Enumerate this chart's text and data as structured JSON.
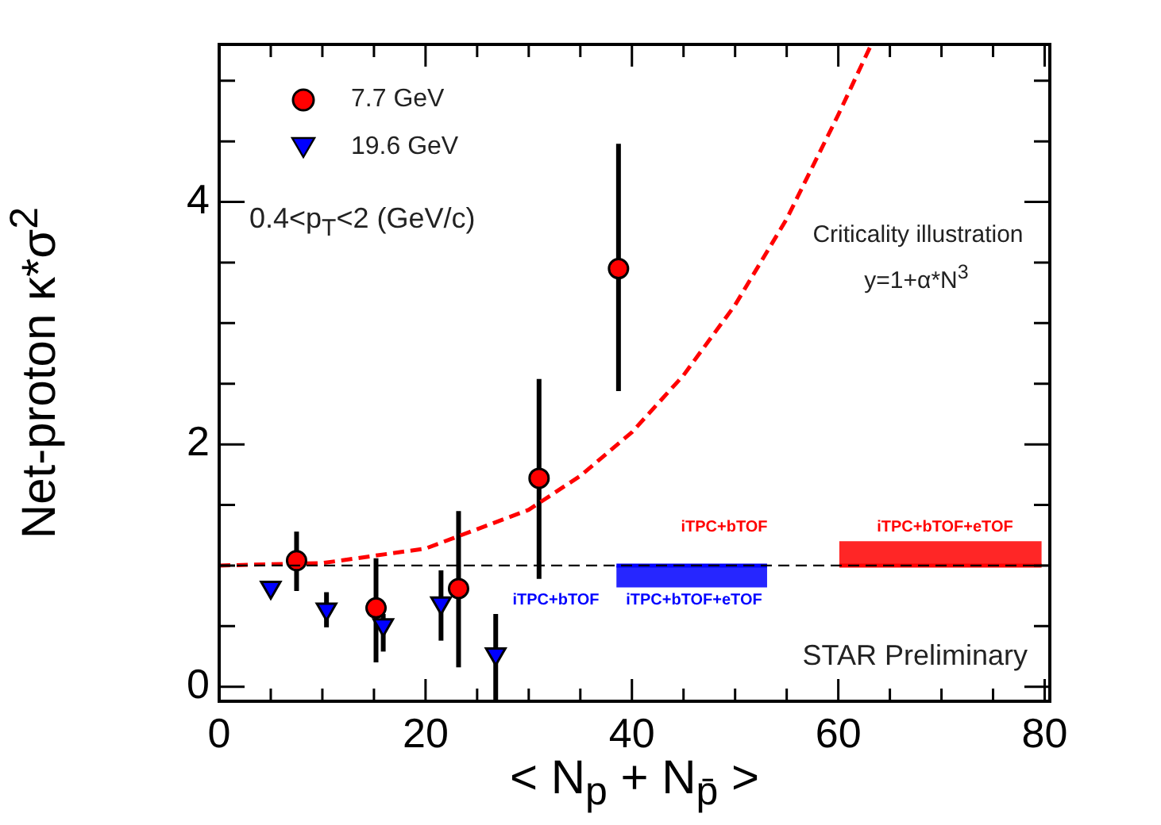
{
  "chart_data": {
    "type": "scatter",
    "xlabel": "< N$_{p}$ + N$_{p̄}$ >",
    "ylabel": "Net-proton  κ*σ$^{2}$",
    "xlim": [
      0,
      80.5
    ],
    "xticks": [
      0,
      {
        "value": 5,
        "label": null
      },
      {
        "value": 10,
        "label": null
      },
      {
        "value": 15,
        "label": null
      },
      20,
      {
        "value": 25,
        "label": null
      },
      {
        "value": 30,
        "label": null
      },
      {
        "value": 35,
        "label": null
      },
      40,
      {
        "value": 45,
        "label": null
      },
      {
        "value": 50,
        "label": null
      },
      {
        "value": 55,
        "label": null
      },
      60,
      {
        "value": 65,
        "label": null
      },
      {
        "value": 70,
        "label": null
      },
      {
        "value": 75,
        "label": null
      },
      80
    ],
    "ylim": [
      -0.12,
      5.3
    ],
    "yticks": [
      0,
      {
        "value": 0.5,
        "label": null
      },
      {
        "value": 1,
        "label": null
      },
      {
        "value": 1.5,
        "label": null
      },
      2,
      {
        "value": 2.5,
        "label": null
      },
      {
        "value": 3,
        "label": null
      },
      {
        "value": 3.5,
        "label": null
      },
      4,
      {
        "value": 4.5,
        "label": null
      },
      {
        "value": 5,
        "label": null
      }
    ],
    "legend": "top left",
    "grid": false,
    "series": [
      {
        "name": "7.7 GeV",
        "marker": "circle",
        "color": "#ff0000",
        "x": [
          7.5,
          15.2,
          23.2,
          31.0,
          38.7
        ],
        "values": [
          1.04,
          0.65,
          0.81,
          1.72,
          3.45
        ],
        "errors": [
          [
            0.79,
            1.28
          ],
          [
            0.2,
            1.06
          ],
          [
            0.16,
            1.45
          ],
          [
            0.89,
            2.54
          ],
          [
            2.44,
            4.48
          ]
        ]
      },
      {
        "name": "19.6 GeV",
        "marker": "triangle",
        "color": "#0000ff",
        "x": [
          5.0,
          10.4,
          15.9,
          21.5,
          26.8
        ],
        "values": [
          0.82,
          0.64,
          0.51,
          0.69,
          0.27
        ],
        "errors": [
          null,
          [
            0.49,
            0.78
          ],
          [
            0.29,
            0.6
          ],
          [
            0.38,
            0.96
          ],
          [
            -0.12,
            0.6
          ]
        ]
      },
      {
        "type": "line",
        "line_style": "dashed",
        "color": "#ff0000",
        "x": [
          0,
          10,
          20,
          30,
          35,
          40,
          45,
          50,
          55,
          60,
          63.2
        ],
        "values": [
          1,
          1.02,
          1.14,
          1.46,
          1.74,
          2.1,
          2.57,
          3.15,
          3.86,
          4.72,
          5.3
        ]
      },
      {
        "type": "line",
        "color": "#0000ff",
        "x": [
          38.5,
          53.1
        ],
        "values": [
          1,
          1
        ],
        "lower": [
          0.82,
          0.82
        ],
        "upper": [
          1,
          1
        ]
      },
      {
        "type": "line",
        "color": "#ff0000",
        "x": [
          60.1,
          79.7
        ],
        "values": [
          1,
          1
        ],
        "lower": [
          1,
          1
        ],
        "upper": [
          1.2,
          1.2
        ]
      }
    ],
    "ref_lines": [
      {
        "axis": "y",
        "value": 1,
        "line_style": "dashed",
        "color": "#000000"
      }
    ],
    "annotations": [
      "0.4<p$_{T}$<2 (GeV/c)",
      "Criticality illustration",
      "y=1+α*N$^{3}$",
      "iTPC+bTOF",
      "iTPC+bTOF+eTOF",
      "iTPC+bTOF",
      "iTPC+bTOF+eTOF",
      "STAR Preliminary"
    ]
  }
}
